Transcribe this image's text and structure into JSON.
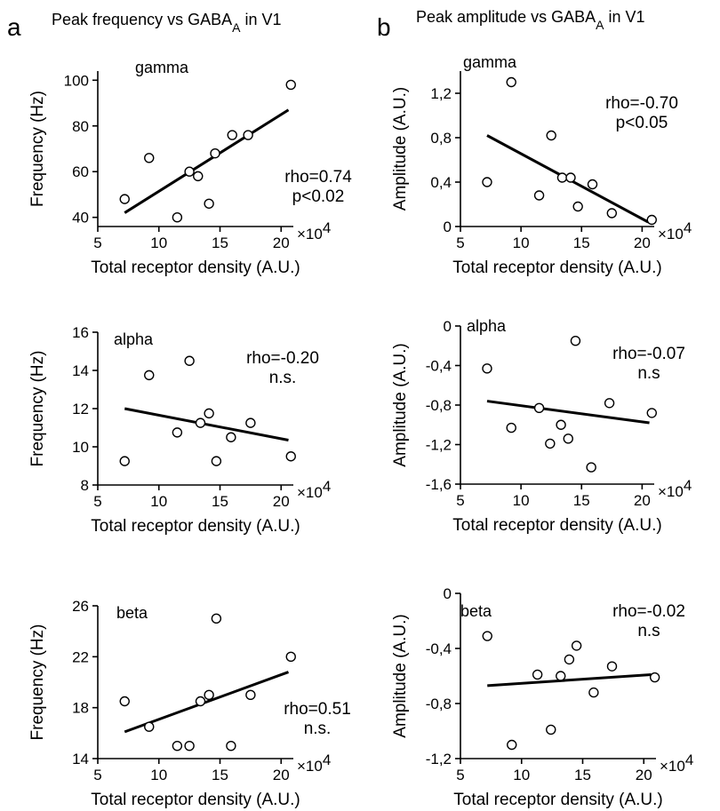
{
  "columns": [
    {
      "letter": "a",
      "header_main": "Peak frequency vs GABA",
      "header_sub": "A",
      "header_tail": " in V1"
    },
    {
      "letter": "b",
      "header_main": "Peak amplitude vs GABA",
      "header_sub": "A",
      "header_tail": " in V1"
    }
  ],
  "chart_data": [
    {
      "type": "scatter",
      "band": "gamma",
      "xlabel": "Total receptor density (A.U.)",
      "ylabel": "Frequency (Hz)",
      "xlim": [
        5,
        21
      ],
      "ylim": [
        36,
        104
      ],
      "xticks": [
        "5",
        "10",
        "15",
        "20"
      ],
      "yticks": [
        "40",
        "60",
        "80",
        "100"
      ],
      "ytick_values": [
        40,
        60,
        80,
        100
      ],
      "xtick_values": [
        5,
        10,
        15,
        20
      ],
      "x_exponent": "×10",
      "x_exponent_power": "4",
      "stat_lines": [
        "rho=0.74",
        "p<0.02"
      ],
      "x": [
        7.2,
        9.2,
        11.5,
        12.5,
        13.2,
        14.1,
        14.6,
        16.0,
        17.3,
        20.8
      ],
      "y": [
        48,
        66,
        40,
        60,
        58,
        46,
        68,
        76,
        76,
        98
      ],
      "fit": {
        "x": [
          7.2,
          20.6
        ],
        "y": [
          42,
          87
        ]
      }
    },
    {
      "type": "scatter",
      "band": "gamma",
      "xlabel": "Total receptor density (A.U.)",
      "ylabel": "Amplitude (A.U.)",
      "xlim": [
        5,
        21
      ],
      "ylim": [
        0,
        1.4
      ],
      "xticks": [
        "5",
        "10",
        "15",
        "20"
      ],
      "yticks": [
        "0",
        "0,4",
        "0,8",
        "1,2"
      ],
      "ytick_values": [
        0,
        0.4,
        0.8,
        1.2
      ],
      "xtick_values": [
        5,
        10,
        15,
        20
      ],
      "x_exponent": "×10",
      "x_exponent_power": "4",
      "stat_lines": [
        "rho=-0.70",
        "p<0.05"
      ],
      "x": [
        7.2,
        9.2,
        11.5,
        12.5,
        13.4,
        14.1,
        14.7,
        15.9,
        17.5,
        20.8
      ],
      "y": [
        0.4,
        1.3,
        0.28,
        0.82,
        0.44,
        0.44,
        0.18,
        0.38,
        0.12,
        0.06
      ],
      "fit": {
        "x": [
          7.2,
          20.5
        ],
        "y": [
          0.82,
          0.04
        ]
      }
    },
    {
      "type": "scatter",
      "band": "alpha",
      "xlabel": "Total receptor density (A.U.)",
      "ylabel": "Frequency (Hz)",
      "xlim": [
        5,
        21
      ],
      "ylim": [
        8,
        16
      ],
      "xticks": [
        "5",
        "10",
        "15",
        "20"
      ],
      "yticks": [
        "8",
        "10",
        "12",
        "14",
        "16"
      ],
      "ytick_values": [
        8,
        10,
        12,
        14,
        16
      ],
      "xtick_values": [
        5,
        10,
        15,
        20
      ],
      "x_exponent": "×10",
      "x_exponent_power": "4",
      "stat_lines": [
        "rho=-0.20",
        "n.s."
      ],
      "x": [
        7.2,
        9.2,
        11.5,
        12.5,
        13.4,
        14.1,
        14.7,
        15.9,
        17.5,
        20.8
      ],
      "y": [
        9.25,
        13.75,
        10.75,
        14.5,
        11.25,
        11.75,
        9.25,
        10.5,
        11.25,
        9.5
      ],
      "fit": {
        "x": [
          7.2,
          20.6
        ],
        "y": [
          12.0,
          10.35
        ]
      }
    },
    {
      "type": "scatter",
      "band": "alpha",
      "xlabel": "Total receptor density (A.U.)",
      "ylabel": "Amplitude (A.U.)",
      "xlim": [
        5,
        21
      ],
      "ylim": [
        -1.6,
        0
      ],
      "xticks": [
        "5",
        "10",
        "15",
        "20"
      ],
      "yticks": [
        "-1,6",
        "-1,2",
        "-0,8",
        "-0,4",
        "0"
      ],
      "ytick_values": [
        -1.6,
        -1.2,
        -0.8,
        -0.4,
        0
      ],
      "xtick_values": [
        5,
        10,
        15,
        20
      ],
      "x_exponent": "×10",
      "x_exponent_power": "4",
      "stat_lines": [
        "rho=-0.07",
        "n.s"
      ],
      "x": [
        7.2,
        9.2,
        11.5,
        12.4,
        13.3,
        13.9,
        14.5,
        15.8,
        17.3,
        20.8
      ],
      "y": [
        -0.43,
        -1.03,
        -0.83,
        -1.19,
        -1.0,
        -1.14,
        -0.15,
        -1.43,
        -0.78,
        -0.88
      ],
      "fit": {
        "x": [
          7.2,
          20.6
        ],
        "y": [
          -0.76,
          -0.98
        ]
      }
    },
    {
      "type": "scatter",
      "band": "beta",
      "xlabel": "Total receptor density (A.U.)",
      "ylabel": "Frequency (Hz)",
      "xlim": [
        5,
        21
      ],
      "ylim": [
        14,
        26
      ],
      "xticks": [
        "5",
        "10",
        "15",
        "20"
      ],
      "yticks": [
        "14",
        "18",
        "22",
        "26"
      ],
      "ytick_values": [
        14,
        18,
        22,
        26
      ],
      "xtick_values": [
        5,
        10,
        15,
        20
      ],
      "x_exponent": "×10",
      "x_exponent_power": "4",
      "stat_lines": [
        "rho=0.51",
        "n.s."
      ],
      "x": [
        7.2,
        9.2,
        11.5,
        12.5,
        13.4,
        14.1,
        14.7,
        15.9,
        17.5,
        20.8
      ],
      "y": [
        18.5,
        16.5,
        15.0,
        15.0,
        18.5,
        19.0,
        25.0,
        15.0,
        19.0,
        22.0
      ],
      "fit": {
        "x": [
          7.2,
          20.6
        ],
        "y": [
          16.1,
          20.8
        ]
      }
    },
    {
      "type": "scatter",
      "band": "beta",
      "xlabel": "Total receptor density (A.U.)",
      "ylabel": "Amplitude (A.U.)",
      "xlim": [
        5,
        21
      ],
      "ylim": [
        -1.2,
        0
      ],
      "xticks": [
        "5",
        "10",
        "15",
        "20"
      ],
      "yticks": [
        "-1,2",
        "-0,8",
        "-0,4",
        "0"
      ],
      "ytick_values": [
        -1.2,
        -0.8,
        -0.4,
        0
      ],
      "xtick_values": [
        5,
        10,
        15,
        20
      ],
      "x_exponent": "×10",
      "x_exponent_power": "4",
      "stat_lines": [
        "rho=-0.02",
        "n.s"
      ],
      "x": [
        7.2,
        9.2,
        11.3,
        12.4,
        13.2,
        13.9,
        14.5,
        15.9,
        17.4,
        20.9
      ],
      "y": [
        -0.31,
        -1.1,
        -0.59,
        -0.99,
        -0.6,
        -0.48,
        -0.38,
        -0.72,
        -0.53,
        -0.61
      ],
      "fit": {
        "x": [
          7.2,
          20.6
        ],
        "y": [
          -0.67,
          -0.59
        ]
      }
    }
  ]
}
